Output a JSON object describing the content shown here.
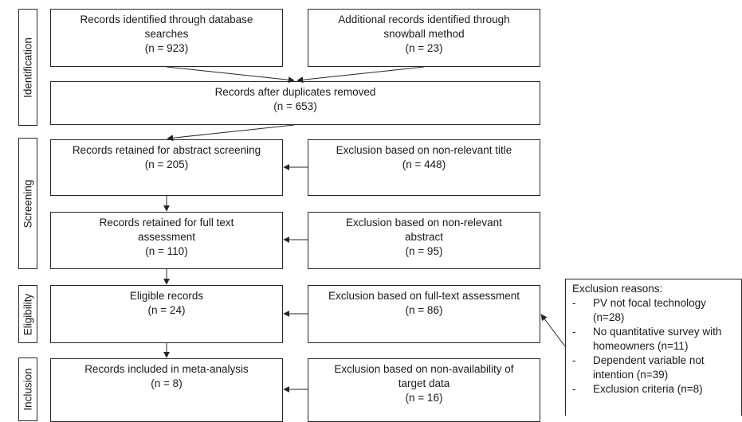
{
  "phases": {
    "identification": "Identification",
    "screening": "Screening",
    "eligibility": "Eligibility",
    "inclusion": "Inclusion"
  },
  "boxes": {
    "database": {
      "lines": [
        "Records identified through database",
        "searches",
        "(n = 923)"
      ]
    },
    "snowball": {
      "lines": [
        "Additional records identified through",
        "snowball method",
        "(n = 23)"
      ]
    },
    "duplicates": {
      "lines": [
        "Records after duplicates removed",
        "(n = 653)"
      ]
    },
    "abstract_screening": {
      "lines": [
        "Records retained for abstract screening",
        "(n = 205)"
      ]
    },
    "excl_title": {
      "lines": [
        "Exclusion based on non-relevant title",
        "(n = 448)"
      ]
    },
    "full_text": {
      "lines": [
        "Records retained for full text",
        "assessment",
        "(n = 110)"
      ]
    },
    "excl_abstract": {
      "lines": [
        "Exclusion based on non-relevant",
        "abstract",
        "(n = 95)"
      ]
    },
    "eligible": {
      "lines": [
        "Eligible records",
        "(n = 24)"
      ]
    },
    "excl_fulltext": {
      "lines": [
        "Exclusion based on full-text assessment",
        "(n = 86)"
      ]
    },
    "included": {
      "lines": [
        "Records included in meta-analysis",
        "(n = 8)"
      ]
    },
    "excl_availability": {
      "lines": [
        "Exclusion based on non-availability of",
        "target data",
        "(n = 16)"
      ]
    }
  },
  "reasons": {
    "header": "Exclusion reasons:",
    "items": [
      {
        "dash": "-",
        "line1": "PV not focal technology",
        "line2": "(n=28)"
      },
      {
        "dash": "-",
        "line1": "No quantitative survey with",
        "line2": "homeowners (n=11)"
      },
      {
        "dash": "-",
        "line1": "Dependent variable not",
        "line2": "intention (n=39)"
      },
      {
        "dash": "-",
        "line1": "Exclusion criteria (n=8)",
        "line2": ""
      }
    ]
  }
}
